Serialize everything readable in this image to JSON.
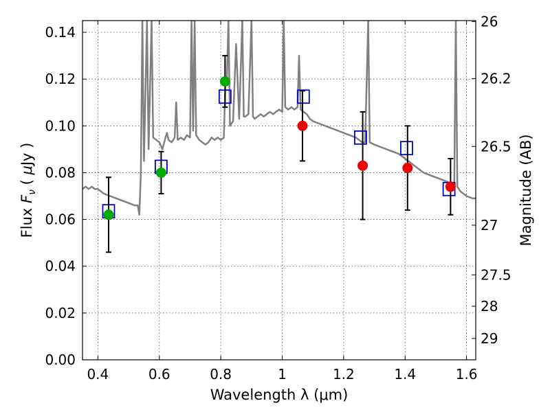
{
  "chart_data": {
    "type": "scatter",
    "title": "",
    "xlabel": "Wavelength  λ (μm)",
    "ylabel": "Flux  F_ν  ( μJy )",
    "ylabel_parts": [
      "Flux  ",
      "F",
      "ν",
      "  ( ",
      "μ",
      "Jy )"
    ],
    "y2label": "Magnitude (AB)",
    "xlim": [
      0.35,
      1.63
    ],
    "ylim": [
      0.0,
      0.145
    ],
    "grid": true,
    "x_ticks": [
      {
        "value": 0.4,
        "label": "0.4"
      },
      {
        "value": 0.6,
        "label": "0.6"
      },
      {
        "value": 0.8,
        "label": "0.8"
      },
      {
        "value": 1.0,
        "label": "1"
      },
      {
        "value": 1.2,
        "label": "1.2"
      },
      {
        "value": 1.4,
        "label": "1.4"
      },
      {
        "value": 1.6,
        "label": "1.6"
      }
    ],
    "y_ticks": [
      {
        "value": 0.0,
        "label": "0.00"
      },
      {
        "value": 0.02,
        "label": "0.02"
      },
      {
        "value": 0.04,
        "label": "0.04"
      },
      {
        "value": 0.06,
        "label": "0.06"
      },
      {
        "value": 0.08,
        "label": "0.08"
      },
      {
        "value": 0.1,
        "label": "0.10"
      },
      {
        "value": 0.12,
        "label": "0.12"
      },
      {
        "value": 0.14,
        "label": "0.14"
      }
    ],
    "y2_ticks": [
      {
        "value": 26.0,
        "label": "26"
      },
      {
        "value": 26.2,
        "label": "26.2"
      },
      {
        "value": 26.5,
        "label": "26.5"
      },
      {
        "value": 27.0,
        "label": "27"
      },
      {
        "value": 27.5,
        "label": "27.5"
      },
      {
        "value": 28.0,
        "label": "28"
      },
      {
        "value": 29.0,
        "label": "29"
      }
    ],
    "colors": {
      "model": "#808080",
      "model_point": "#0000cc",
      "optical": "#00aa00",
      "nir": "#ee0000",
      "errorbar": "#000000"
    },
    "observed": [
      {
        "x": 0.435,
        "y": 0.062,
        "err": 0.016,
        "color": "optical"
      },
      {
        "x": 0.606,
        "y": 0.08,
        "err": 0.009,
        "color": "optical"
      },
      {
        "x": 0.814,
        "y": 0.119,
        "err": 0.011,
        "color": "optical"
      },
      {
        "x": 1.066,
        "y": 0.1,
        "err": 0.015,
        "color": "nir"
      },
      {
        "x": 1.262,
        "y": 0.083,
        "err": 0.023,
        "color": "nir"
      },
      {
        "x": 1.408,
        "y": 0.082,
        "err": 0.018,
        "color": "nir"
      },
      {
        "x": 1.548,
        "y": 0.074,
        "err": 0.012,
        "color": "nir"
      }
    ],
    "model_points": [
      {
        "x": 0.435,
        "y": 0.0635
      },
      {
        "x": 0.606,
        "y": 0.0825
      },
      {
        "x": 0.814,
        "y": 0.1125
      },
      {
        "x": 1.069,
        "y": 0.1125
      },
      {
        "x": 1.255,
        "y": 0.095
      },
      {
        "x": 1.405,
        "y": 0.0905
      },
      {
        "x": 1.543,
        "y": 0.073
      }
    ],
    "model_spectrum": [
      [
        0.35,
        0.073
      ],
      [
        0.36,
        0.074
      ],
      [
        0.37,
        0.073
      ],
      [
        0.38,
        0.074
      ],
      [
        0.39,
        0.073
      ],
      [
        0.4,
        0.073
      ],
      [
        0.41,
        0.072
      ],
      [
        0.42,
        0.071
      ],
      [
        0.44,
        0.07
      ],
      [
        0.46,
        0.069
      ],
      [
        0.48,
        0.068
      ],
      [
        0.5,
        0.067
      ],
      [
        0.52,
        0.066
      ],
      [
        0.53,
        0.066
      ],
      [
        0.535,
        0.062
      ],
      [
        0.54,
        0.08
      ],
      [
        0.545,
        0.145
      ],
      [
        0.55,
        0.085
      ],
      [
        0.56,
        0.145
      ],
      [
        0.565,
        0.09
      ],
      [
        0.575,
        0.145
      ],
      [
        0.58,
        0.095
      ],
      [
        0.59,
        0.094
      ],
      [
        0.6,
        0.093
      ],
      [
        0.61,
        0.09
      ],
      [
        0.62,
        0.095
      ],
      [
        0.625,
        0.097
      ],
      [
        0.63,
        0.094
      ],
      [
        0.64,
        0.093
      ],
      [
        0.65,
        0.095
      ],
      [
        0.655,
        0.11
      ],
      [
        0.66,
        0.094
      ],
      [
        0.67,
        0.095
      ],
      [
        0.68,
        0.094
      ],
      [
        0.69,
        0.096
      ],
      [
        0.7,
        0.095
      ],
      [
        0.705,
        0.145
      ],
      [
        0.71,
        0.098
      ],
      [
        0.715,
        0.145
      ],
      [
        0.72,
        0.096
      ],
      [
        0.73,
        0.094
      ],
      [
        0.74,
        0.093
      ],
      [
        0.75,
        0.092
      ],
      [
        0.76,
        0.093
      ],
      [
        0.77,
        0.095
      ],
      [
        0.78,
        0.094
      ],
      [
        0.79,
        0.095
      ],
      [
        0.8,
        0.094
      ],
      [
        0.81,
        0.095
      ],
      [
        0.815,
        0.118
      ],
      [
        0.82,
        0.12
      ],
      [
        0.825,
        0.145
      ],
      [
        0.83,
        0.1
      ],
      [
        0.84,
        0.102
      ],
      [
        0.85,
        0.135
      ],
      [
        0.86,
        0.103
      ],
      [
        0.87,
        0.145
      ],
      [
        0.875,
        0.104
      ],
      [
        0.88,
        0.104
      ],
      [
        0.89,
        0.105
      ],
      [
        0.9,
        0.145
      ],
      [
        0.905,
        0.104
      ],
      [
        0.91,
        0.103
      ],
      [
        0.92,
        0.104
      ],
      [
        0.93,
        0.105
      ],
      [
        0.94,
        0.104
      ],
      [
        0.95,
        0.105
      ],
      [
        0.96,
        0.106
      ],
      [
        0.97,
        0.105
      ],
      [
        0.98,
        0.106
      ],
      [
        0.99,
        0.107
      ],
      [
        1.0,
        0.106
      ],
      [
        1.005,
        0.145
      ],
      [
        1.01,
        0.108
      ],
      [
        1.02,
        0.107
      ],
      [
        1.03,
        0.108
      ],
      [
        1.04,
        0.107
      ],
      [
        1.05,
        0.108
      ],
      [
        1.055,
        0.13
      ],
      [
        1.06,
        0.107
      ],
      [
        1.07,
        0.106
      ],
      [
        1.08,
        0.105
      ],
      [
        1.09,
        0.103
      ],
      [
        1.1,
        0.102
      ],
      [
        1.12,
        0.101
      ],
      [
        1.14,
        0.1
      ],
      [
        1.16,
        0.099
      ],
      [
        1.18,
        0.098
      ],
      [
        1.2,
        0.097
      ],
      [
        1.22,
        0.096
      ],
      [
        1.24,
        0.095
      ],
      [
        1.25,
        0.094
      ],
      [
        1.26,
        0.093
      ],
      [
        1.27,
        0.093
      ],
      [
        1.28,
        0.145
      ],
      [
        1.285,
        0.093
      ],
      [
        1.3,
        0.092
      ],
      [
        1.32,
        0.091
      ],
      [
        1.34,
        0.09
      ],
      [
        1.36,
        0.089
      ],
      [
        1.38,
        0.088
      ],
      [
        1.4,
        0.086
      ],
      [
        1.42,
        0.084
      ],
      [
        1.44,
        0.082
      ],
      [
        1.46,
        0.08
      ],
      [
        1.48,
        0.079
      ],
      [
        1.5,
        0.078
      ],
      [
        1.52,
        0.077
      ],
      [
        1.54,
        0.076
      ],
      [
        1.55,
        0.075
      ],
      [
        1.56,
        0.074
      ],
      [
        1.565,
        0.145
      ],
      [
        1.57,
        0.074
      ],
      [
        1.58,
        0.072
      ],
      [
        1.6,
        0.07
      ],
      [
        1.62,
        0.069
      ],
      [
        1.63,
        0.069
      ]
    ]
  }
}
